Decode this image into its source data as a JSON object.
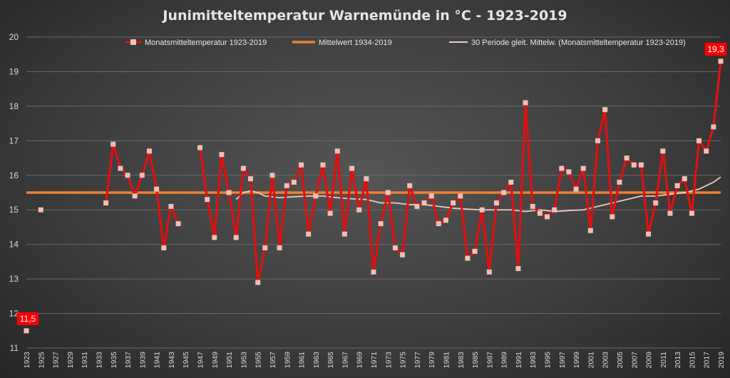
{
  "chart_data": {
    "type": "line",
    "title": "Junimitteltemperatur  Warnemünde  in  °C  -  1923-2019",
    "xlabel": "",
    "ylabel": "",
    "xlim": [
      1923,
      2019
    ],
    "ylim": [
      11,
      20
    ],
    "yticks": [
      "11",
      "12",
      "13",
      "14",
      "15",
      "16",
      "17",
      "18",
      "19",
      "20"
    ],
    "xticks": [
      "1923",
      "1925",
      "1927",
      "1929",
      "1931",
      "1933",
      "1935",
      "1937",
      "1939",
      "1941",
      "1943",
      "1945",
      "1947",
      "1949",
      "1951",
      "1953",
      "1955",
      "1957",
      "1959",
      "1961",
      "1963",
      "1965",
      "1967",
      "1969",
      "1971",
      "1973",
      "1975",
      "1977",
      "1979",
      "1981",
      "1983",
      "1985",
      "1987",
      "1989",
      "1991",
      "1993",
      "1995",
      "1997",
      "1999",
      "2001",
      "2003",
      "2005",
      "2007",
      "2009",
      "2011",
      "2013",
      "2015",
      "2017",
      "2019"
    ],
    "grid": true,
    "legend_position": "top",
    "colors": {
      "series": "#e01010",
      "marker": "#f0c0b8",
      "mean": "#f08030",
      "moving_avg": "#f0c8c0",
      "callout": "#ff0000"
    },
    "series": [
      {
        "name": "Monatsmitteltemperatur 1923-2019",
        "points": [
          [
            1923,
            11.5
          ],
          [
            1925,
            15.0
          ],
          [
            1934,
            15.2
          ],
          [
            1935,
            16.9
          ],
          [
            1936,
            16.2
          ],
          [
            1937,
            16.0
          ],
          [
            1938,
            15.4
          ],
          [
            1939,
            16.0
          ],
          [
            1940,
            16.7
          ],
          [
            1941,
            15.6
          ],
          [
            1942,
            13.9
          ],
          [
            1943,
            15.1
          ],
          [
            1944,
            14.6
          ],
          [
            1947,
            16.8
          ],
          [
            1948,
            15.3
          ],
          [
            1949,
            14.2
          ],
          [
            1950,
            16.6
          ],
          [
            1951,
            15.5
          ],
          [
            1952,
            14.2
          ],
          [
            1953,
            16.2
          ],
          [
            1954,
            15.9
          ],
          [
            1955,
            12.9
          ],
          [
            1956,
            13.9
          ],
          [
            1957,
            16.0
          ],
          [
            1958,
            13.9
          ],
          [
            1959,
            15.7
          ],
          [
            1960,
            15.8
          ],
          [
            1961,
            16.3
          ],
          [
            1962,
            14.3
          ],
          [
            1963,
            15.4
          ],
          [
            1964,
            16.3
          ],
          [
            1965,
            14.9
          ],
          [
            1966,
            16.7
          ],
          [
            1967,
            14.3
          ],
          [
            1968,
            16.2
          ],
          [
            1969,
            15.0
          ],
          [
            1970,
            15.9
          ],
          [
            1971,
            13.2
          ],
          [
            1972,
            14.6
          ],
          [
            1973,
            15.5
          ],
          [
            1974,
            13.9
          ],
          [
            1975,
            13.7
          ],
          [
            1976,
            15.7
          ],
          [
            1977,
            15.1
          ],
          [
            1978,
            15.2
          ],
          [
            1979,
            15.4
          ],
          [
            1980,
            14.6
          ],
          [
            1981,
            14.7
          ],
          [
            1982,
            15.2
          ],
          [
            1983,
            15.4
          ],
          [
            1984,
            13.6
          ],
          [
            1985,
            13.8
          ],
          [
            1986,
            15.0
          ],
          [
            1987,
            13.2
          ],
          [
            1988,
            15.2
          ],
          [
            1989,
            15.5
          ],
          [
            1990,
            15.8
          ],
          [
            1991,
            13.3
          ],
          [
            1992,
            18.1
          ],
          [
            1993,
            15.1
          ],
          [
            1994,
            14.9
          ],
          [
            1995,
            14.8
          ],
          [
            1996,
            15.0
          ],
          [
            1997,
            16.2
          ],
          [
            1998,
            16.1
          ],
          [
            1999,
            15.6
          ],
          [
            2000,
            16.2
          ],
          [
            2001,
            14.4
          ],
          [
            2002,
            17.0
          ],
          [
            2003,
            17.9
          ],
          [
            2004,
            14.8
          ],
          [
            2005,
            15.8
          ],
          [
            2006,
            16.5
          ],
          [
            2007,
            16.3
          ],
          [
            2008,
            16.3
          ],
          [
            2009,
            14.3
          ],
          [
            2010,
            15.2
          ],
          [
            2011,
            16.7
          ],
          [
            2012,
            14.9
          ],
          [
            2013,
            15.7
          ],
          [
            2014,
            15.9
          ],
          [
            2015,
            14.9
          ],
          [
            2016,
            17.0
          ],
          [
            2017,
            16.7
          ],
          [
            2018,
            17.4
          ],
          [
            2019,
            19.3
          ]
        ]
      },
      {
        "name": "Mittelwert 1934-2019",
        "value": 15.5
      },
      {
        "name": "30 Periode gleit. Mittelw. (Monatsmitteltemperatur 1923-2019)",
        "points": [
          [
            1952,
            15.3
          ],
          [
            1953,
            15.5
          ],
          [
            1954,
            15.55
          ],
          [
            1955,
            15.5
          ],
          [
            1956,
            15.4
          ],
          [
            1957,
            15.38
          ],
          [
            1958,
            15.35
          ],
          [
            1960,
            15.38
          ],
          [
            1962,
            15.4
          ],
          [
            1964,
            15.4
          ],
          [
            1966,
            15.35
          ],
          [
            1968,
            15.32
          ],
          [
            1970,
            15.3
          ],
          [
            1972,
            15.2
          ],
          [
            1974,
            15.2
          ],
          [
            1976,
            15.15
          ],
          [
            1978,
            15.15
          ],
          [
            1980,
            15.1
          ],
          [
            1982,
            15.05
          ],
          [
            1984,
            15.02
          ],
          [
            1986,
            15.0
          ],
          [
            1988,
            15.0
          ],
          [
            1990,
            15.0
          ],
          [
            1992,
            14.95
          ],
          [
            1994,
            15.0
          ],
          [
            1996,
            14.95
          ],
          [
            1998,
            14.98
          ],
          [
            2000,
            15.0
          ],
          [
            2002,
            15.1
          ],
          [
            2004,
            15.2
          ],
          [
            2006,
            15.3
          ],
          [
            2008,
            15.4
          ],
          [
            2010,
            15.4
          ],
          [
            2012,
            15.45
          ],
          [
            2014,
            15.5
          ],
          [
            2016,
            15.6
          ],
          [
            2017,
            15.7
          ],
          [
            2018,
            15.8
          ],
          [
            2019,
            15.95
          ]
        ]
      }
    ],
    "annotations": [
      {
        "x": 1923,
        "y": 11.5,
        "text": "11,5"
      },
      {
        "x": 2019,
        "y": 19.3,
        "text": "19,3"
      }
    ]
  }
}
